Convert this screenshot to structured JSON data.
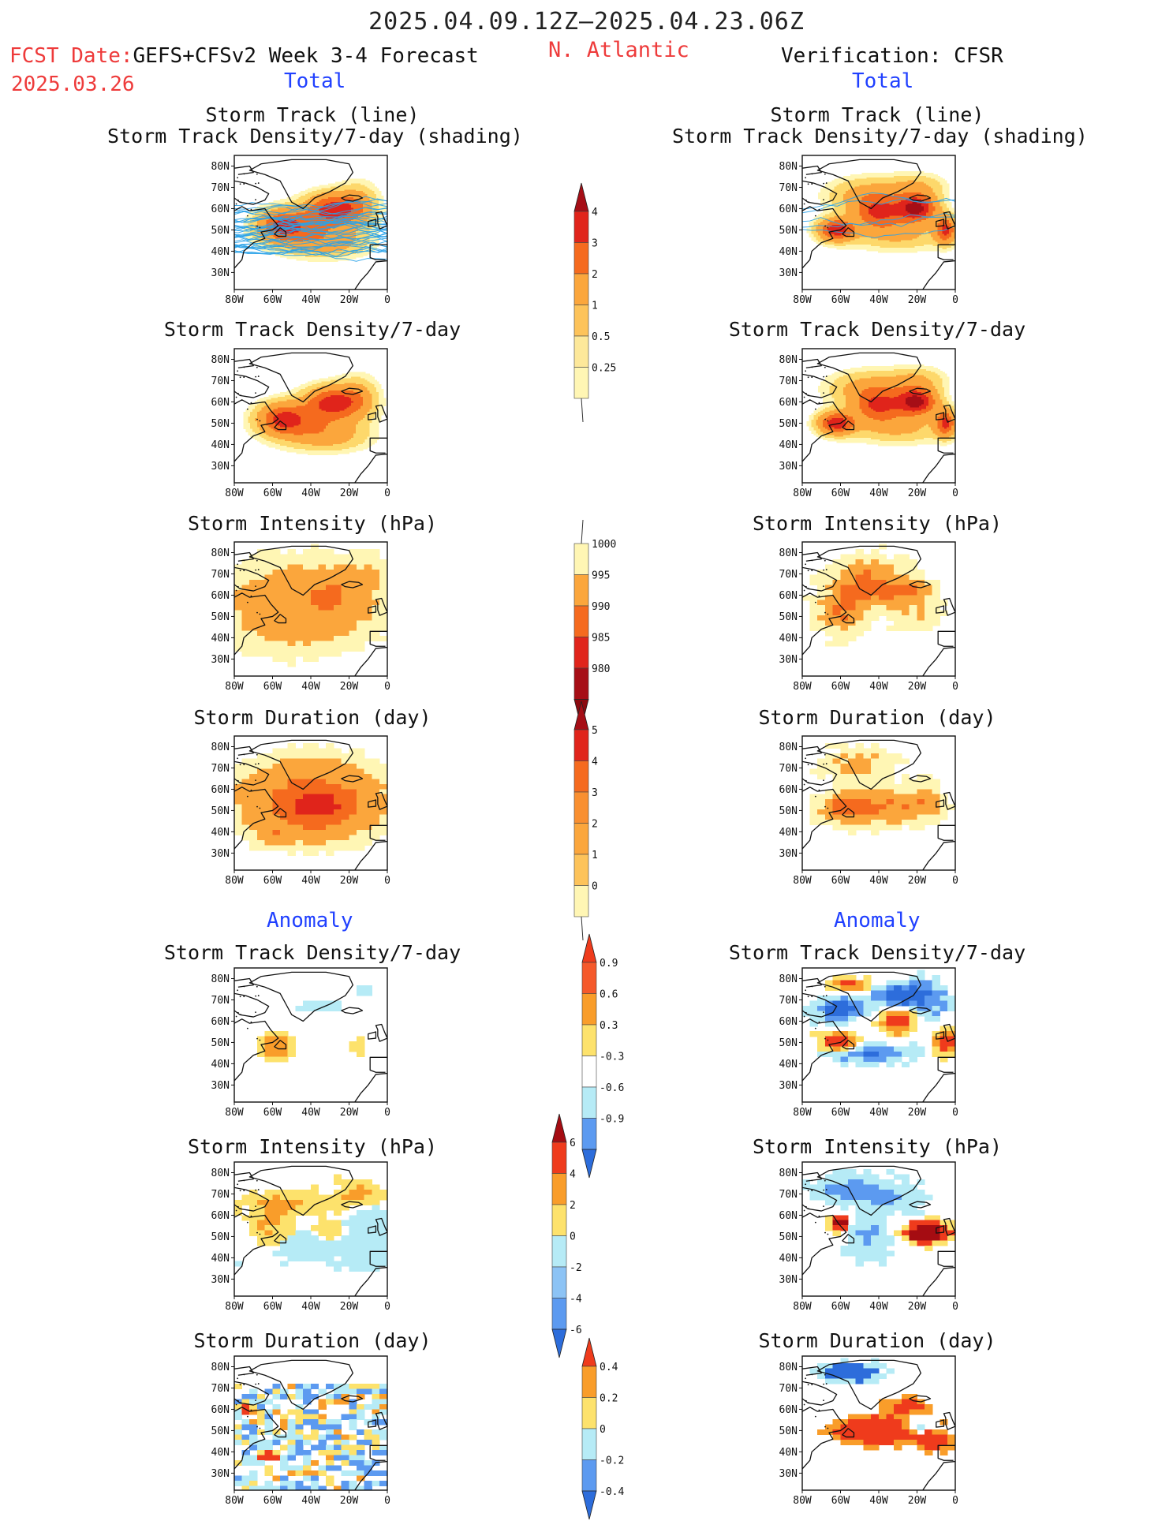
{
  "header": {
    "dates": "2025.04.09.12Z–2025.04.23.06Z",
    "fcst_line1": "FCST Date:GEFS+CFSv2 Week 3-4 Forecast",
    "fcst_label": "FCST Date:",
    "fcst_model": "GEFS+CFSv2 Week 3-4 Forecast",
    "fcst_date": "2025.03.26",
    "region": "N. Atlantic",
    "verification": "Verification: CFSR",
    "left_section": "Total",
    "right_section": "Total",
    "anomaly_left": "Anomaly",
    "anomaly_right": "Anomaly"
  },
  "panel_titles": {
    "track_line": "Storm Track (line)",
    "track_shading": "Storm Track Density/7-day (shading)",
    "density": "Storm Track Density/7-day",
    "intensity": "Storm Intensity (hPa)",
    "duration": "Storm Duration (day)"
  },
  "axes": {
    "lat_labels": [
      "80N",
      "70N",
      "60N",
      "50N",
      "40N",
      "30N"
    ],
    "lon_labels": [
      "80W",
      "60W",
      "40W",
      "20W",
      "0"
    ]
  },
  "colorbars": {
    "density_total": [
      "4",
      "3",
      "2",
      "1",
      "0.5",
      "0.25"
    ],
    "intensity_total": [
      "1000",
      "995",
      "990",
      "985",
      "980"
    ],
    "duration_total": [
      "5",
      "4",
      "3",
      "2",
      "1",
      "0"
    ],
    "density_anom": [
      "0.9",
      "0.6",
      "0.3",
      "-0.3",
      "-0.6",
      "-0.9"
    ],
    "intensity_anom": [
      "6",
      "4",
      "2",
      "0",
      "-2",
      "-4",
      "-6"
    ],
    "duration_anom": [
      "0.4",
      "0.2",
      "0",
      "-0.2",
      "-0.4"
    ]
  },
  "chart_data": [
    {
      "type": "heatmap",
      "title": "Storm Track Density/7-day (shading)",
      "side": "GEFS+CFSv2",
      "scale": [
        0.25,
        0.5,
        1,
        2,
        3,
        4
      ],
      "max_region": "60N 25W",
      "max_value": 3
    },
    {
      "type": "heatmap",
      "title": "Storm Track Density/7-day (shading)",
      "side": "CFSR",
      "scale": [
        0.25,
        0.5,
        1,
        2,
        3,
        4
      ],
      "max_region": "62N 20W",
      "max_value": 4
    },
    {
      "type": "heatmap",
      "title": "Storm Track Density/7-day",
      "side": "GEFS+CFSv2",
      "scale": [
        0.25,
        0.5,
        1,
        2,
        3,
        4
      ]
    },
    {
      "type": "heatmap",
      "title": "Storm Track Density/7-day",
      "side": "CFSR",
      "scale": [
        0.25,
        0.5,
        1,
        2,
        3,
        4
      ]
    },
    {
      "type": "heatmap",
      "title": "Storm Intensity (hPa)",
      "side": "GEFS+CFSv2",
      "scale": [
        1000,
        995,
        990,
        985,
        980
      ]
    },
    {
      "type": "heatmap",
      "title": "Storm Intensity (hPa)",
      "side": "CFSR",
      "scale": [
        1000,
        995,
        990,
        985,
        980
      ]
    },
    {
      "type": "heatmap",
      "title": "Storm Duration (day)",
      "side": "GEFS+CFSv2",
      "scale": [
        0,
        1,
        2,
        3,
        4,
        5
      ]
    },
    {
      "type": "heatmap",
      "title": "Storm Duration (day)",
      "side": "CFSR",
      "scale": [
        0,
        1,
        2,
        3,
        4,
        5
      ]
    },
    {
      "type": "heatmap",
      "title": "Storm Track Density/7-day",
      "side": "GEFS+CFSv2 Anomaly",
      "scale": [
        -0.9,
        -0.6,
        -0.3,
        0.3,
        0.6,
        0.9
      ]
    },
    {
      "type": "heatmap",
      "title": "Storm Track Density/7-day",
      "side": "CFSR Anomaly",
      "scale": [
        -0.9,
        -0.6,
        -0.3,
        0.3,
        0.6,
        0.9
      ]
    },
    {
      "type": "heatmap",
      "title": "Storm Intensity (hPa)",
      "side": "GEFS+CFSv2 Anomaly",
      "scale": [
        -6,
        -4,
        -2,
        0,
        2,
        4,
        6
      ]
    },
    {
      "type": "heatmap",
      "title": "Storm Intensity (hPa)",
      "side": "CFSR Anomaly",
      "scale": [
        -6,
        -4,
        -2,
        0,
        2,
        4,
        6
      ]
    },
    {
      "type": "heatmap",
      "title": "Storm Duration (day)",
      "side": "GEFS+CFSv2 Anomaly",
      "scale": [
        -0.4,
        -0.2,
        0,
        0.2,
        0.4
      ]
    },
    {
      "type": "heatmap",
      "title": "Storm Duration (day)",
      "side": "CFSR Anomaly",
      "scale": [
        -0.4,
        -0.2,
        0,
        0.2,
        0.4
      ]
    }
  ]
}
